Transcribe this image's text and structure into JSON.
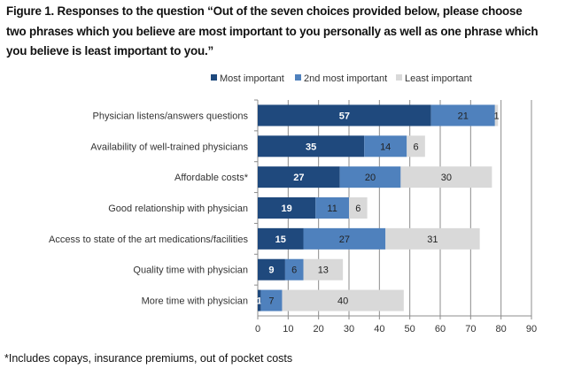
{
  "chart_data": {
    "type": "bar",
    "orientation": "horizontal",
    "stacked": true,
    "title_lines": [
      "Figure 1. Responses to the question “Out of the seven choices provided below, please choose",
      "two phrases which you believe are most important to you personally as well as  one phrase which",
      "you believe is least important to you.”"
    ],
    "footnote": "*Includes copays, insurance premiums, out of pocket costs",
    "categories": [
      "Physician listens/answers questions",
      "Availability of well-trained physicians",
      "Affordable costs*",
      "Good relationship with physician",
      "Access to state of the art medications/facilities",
      "Quality time with physician",
      "More time with physician"
    ],
    "series": [
      {
        "name": "Most important",
        "color": "#1f497d",
        "values": [
          57,
          35,
          27,
          19,
          15,
          9,
          1
        ]
      },
      {
        "name": "2nd most important",
        "color": "#4f81bd",
        "values": [
          21,
          14,
          20,
          11,
          27,
          6,
          7
        ]
      },
      {
        "name": "Least important",
        "color": "#d9d9d9",
        "values": [
          1,
          6,
          30,
          6,
          31,
          13,
          40
        ]
      }
    ],
    "xlim": [
      0,
      90
    ],
    "xticks": [
      0,
      10,
      20,
      30,
      40,
      50,
      60,
      70,
      80,
      90
    ],
    "grid": true,
    "legend": "top-center"
  }
}
